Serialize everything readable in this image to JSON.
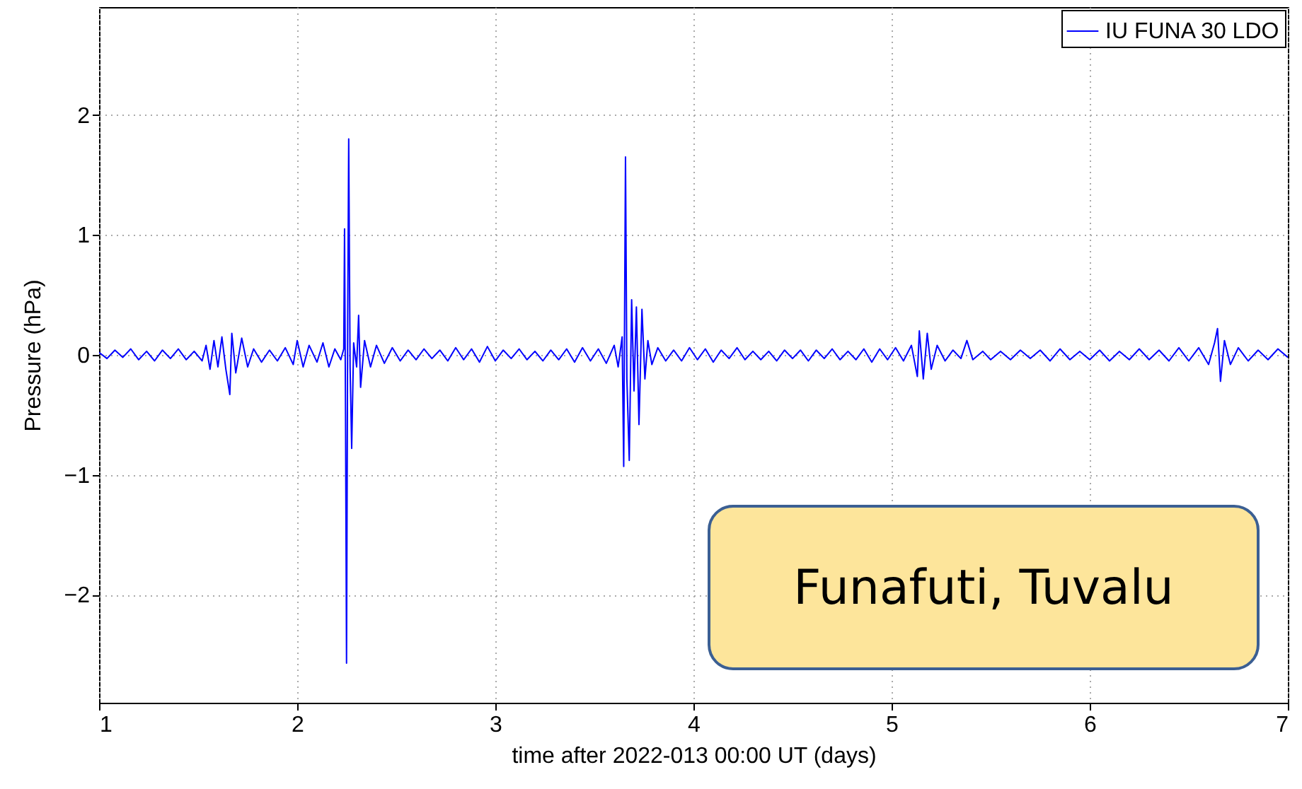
{
  "chart_data": {
    "type": "line",
    "xlabel": "time after 2022-013 00:00 UT (days)",
    "ylabel": "Pressure (hPa)",
    "xlim": [
      1,
      7
    ],
    "xticks": [
      1,
      2,
      3,
      4,
      5,
      6,
      7
    ],
    "ylim": [
      -2.9,
      2.9
    ],
    "yticks": [
      -2,
      -1,
      0,
      1,
      2
    ],
    "grid": true,
    "legend": "top right",
    "line_style": "solid",
    "annotations": [
      "Funafuti, Tuvalu"
    ],
    "series": [
      {
        "name": "IU FUNA 30 LDO",
        "color": "#0000ff",
        "x": [
          1.0,
          1.04,
          1.08,
          1.12,
          1.16,
          1.2,
          1.24,
          1.28,
          1.32,
          1.36,
          1.4,
          1.44,
          1.48,
          1.52,
          1.54,
          1.56,
          1.58,
          1.6,
          1.62,
          1.64,
          1.66,
          1.67,
          1.69,
          1.72,
          1.75,
          1.78,
          1.82,
          1.86,
          1.9,
          1.94,
          1.98,
          2.0,
          2.03,
          2.06,
          2.1,
          2.13,
          2.16,
          2.19,
          2.22,
          2.235,
          2.239,
          2.244,
          2.249,
          2.255,
          2.26,
          2.267,
          2.275,
          2.285,
          2.3,
          2.31,
          2.32,
          2.34,
          2.37,
          2.4,
          2.44,
          2.48,
          2.52,
          2.56,
          2.6,
          2.64,
          2.68,
          2.72,
          2.76,
          2.8,
          2.84,
          2.88,
          2.92,
          2.96,
          3.0,
          3.04,
          3.08,
          3.12,
          3.16,
          3.2,
          3.24,
          3.28,
          3.32,
          3.36,
          3.4,
          3.44,
          3.48,
          3.52,
          3.56,
          3.6,
          3.62,
          3.64,
          3.648,
          3.657,
          3.664,
          3.676,
          3.688,
          3.7,
          3.712,
          3.725,
          3.74,
          3.755,
          3.77,
          3.79,
          3.82,
          3.86,
          3.9,
          3.94,
          3.98,
          4.02,
          4.06,
          4.1,
          4.14,
          4.18,
          4.22,
          4.26,
          4.3,
          4.34,
          4.38,
          4.42,
          4.46,
          4.5,
          4.54,
          4.58,
          4.62,
          4.66,
          4.7,
          4.74,
          4.78,
          4.82,
          4.86,
          4.9,
          4.94,
          4.98,
          5.02,
          5.06,
          5.1,
          5.13,
          5.14,
          5.16,
          5.18,
          5.2,
          5.23,
          5.27,
          5.31,
          5.35,
          5.38,
          5.41,
          5.46,
          5.5,
          5.55,
          5.6,
          5.65,
          5.7,
          5.75,
          5.8,
          5.85,
          5.9,
          5.95,
          6.0,
          6.05,
          6.1,
          6.15,
          6.2,
          6.25,
          6.3,
          6.35,
          6.4,
          6.45,
          6.5,
          6.55,
          6.6,
          6.63,
          6.645,
          6.66,
          6.68,
          6.71,
          6.75,
          6.8,
          6.85,
          6.9,
          6.95,
          7.0
        ],
        "values": [
          0.02,
          -0.03,
          0.04,
          -0.02,
          0.05,
          -0.04,
          0.03,
          -0.05,
          0.04,
          -0.03,
          0.05,
          -0.04,
          0.03,
          -0.05,
          0.08,
          -0.12,
          0.12,
          -0.1,
          0.15,
          -0.12,
          -0.33,
          0.18,
          -0.15,
          0.14,
          -0.1,
          0.05,
          -0.06,
          0.04,
          -0.05,
          0.06,
          -0.08,
          0.12,
          -0.1,
          0.08,
          -0.06,
          0.1,
          -0.1,
          0.05,
          -0.04,
          0.05,
          1.05,
          -0.5,
          -2.57,
          0.3,
          1.8,
          -0.1,
          -0.78,
          0.1,
          -0.1,
          0.33,
          -0.27,
          0.12,
          -0.1,
          0.08,
          -0.07,
          0.06,
          -0.05,
          0.04,
          -0.04,
          0.05,
          -0.03,
          0.04,
          -0.05,
          0.06,
          -0.04,
          0.05,
          -0.06,
          0.07,
          -0.05,
          0.04,
          -0.03,
          0.05,
          -0.04,
          0.03,
          -0.05,
          0.04,
          -0.04,
          0.05,
          -0.06,
          0.06,
          -0.05,
          0.05,
          -0.07,
          0.08,
          -0.1,
          0.15,
          -0.93,
          1.65,
          -0.2,
          -0.88,
          0.46,
          -0.3,
          0.4,
          -0.58,
          0.38,
          -0.2,
          0.12,
          -0.08,
          0.06,
          -0.05,
          0.04,
          -0.05,
          0.06,
          -0.04,
          0.05,
          -0.06,
          0.04,
          -0.03,
          0.06,
          -0.04,
          0.03,
          -0.04,
          0.03,
          -0.05,
          0.04,
          -0.03,
          0.04,
          -0.05,
          0.04,
          -0.03,
          0.05,
          -0.04,
          0.03,
          -0.04,
          0.05,
          -0.06,
          0.05,
          -0.04,
          0.06,
          -0.05,
          0.08,
          -0.18,
          0.2,
          -0.2,
          0.18,
          -0.12,
          0.08,
          -0.05,
          0.04,
          -0.03,
          0.12,
          -0.04,
          0.03,
          -0.04,
          0.03,
          -0.04,
          0.04,
          -0.03,
          0.04,
          -0.05,
          0.05,
          -0.04,
          0.03,
          -0.04,
          0.04,
          -0.05,
          0.03,
          -0.04,
          0.05,
          -0.04,
          0.04,
          -0.05,
          0.06,
          -0.05,
          0.06,
          -0.08,
          0.1,
          0.22,
          -0.22,
          0.12,
          -0.08,
          0.06,
          -0.05,
          0.04,
          -0.04,
          0.05,
          -0.02
        ]
      }
    ]
  }
}
